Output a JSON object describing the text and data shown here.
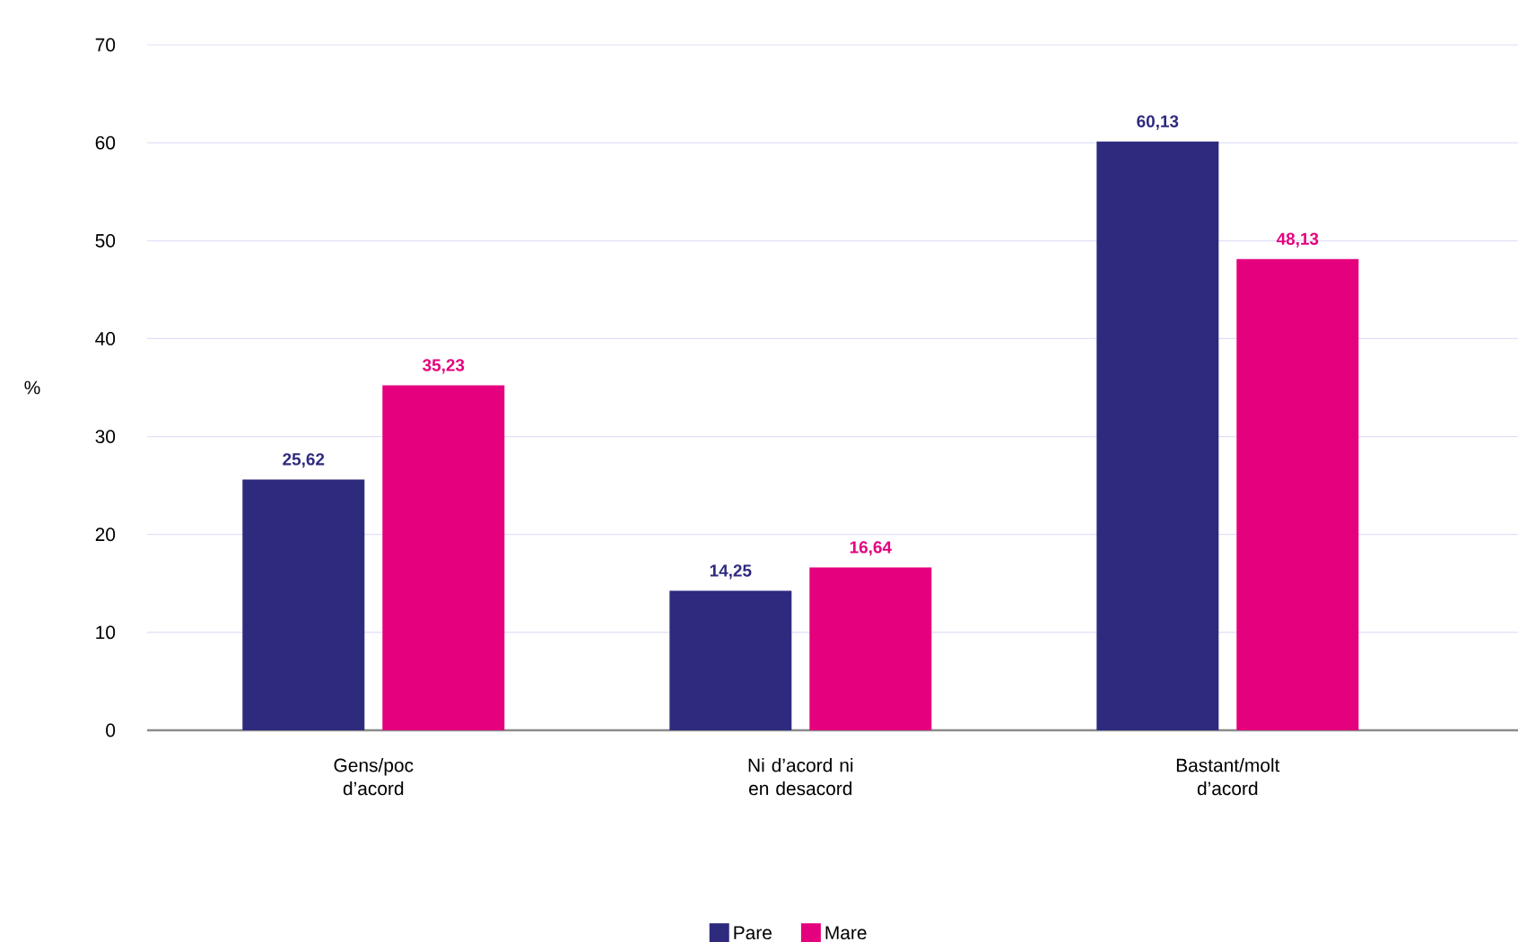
{
  "chart_data": {
    "type": "bar",
    "ylabel": "%",
    "categories": [
      "Gens/poc d’acord",
      "Ni d’acord ni en desacord",
      "Bastant/molt d’acord"
    ],
    "series": [
      {
        "name": "Pare",
        "color": "#2e2a7e",
        "values": [
          25.62,
          14.25,
          60.13
        ],
        "value_labels": [
          "25,62",
          "14,25",
          "60,13"
        ]
      },
      {
        "name": "Mare",
        "color": "#e5007d",
        "values": [
          35.23,
          16.64,
          48.13
        ],
        "value_labels": [
          "35,23",
          "16,64",
          "48,13"
        ]
      }
    ],
    "ylim": [
      0,
      70
    ],
    "yticks": [
      0,
      10,
      20,
      30,
      40,
      50,
      60,
      70
    ],
    "grid": "y",
    "legend": "bottom"
  }
}
